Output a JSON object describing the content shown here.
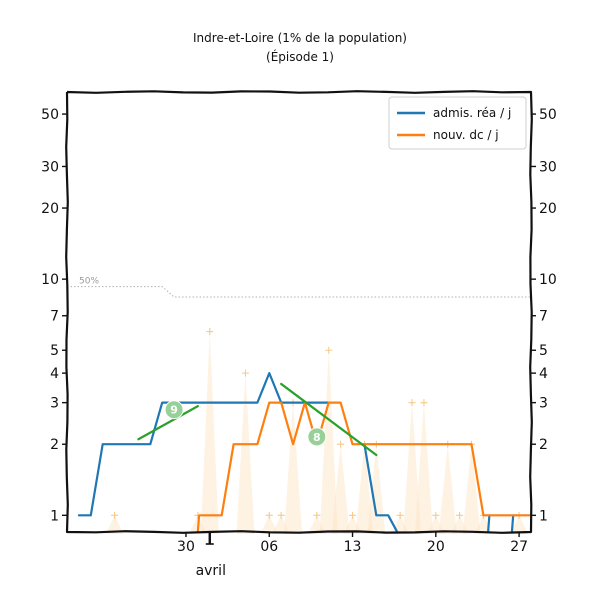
{
  "chart_data": {
    "type": "line",
    "title": "Indre-et-Loire (1% de la population)",
    "subtitle": "(Épisode 1)",
    "y_scale": "log",
    "ylim": [
      0.85,
      62
    ],
    "xlim": [
      "2020-03-20",
      "2020-04-28"
    ],
    "y_ticks": [
      {
        "value": 1,
        "label": "1"
      },
      {
        "value": 2,
        "label": "2"
      },
      {
        "value": 3,
        "label": "3"
      },
      {
        "value": 4,
        "label": "4"
      },
      {
        "value": 5,
        "label": "5"
      },
      {
        "value": 7,
        "label": "7"
      },
      {
        "value": 10,
        "label": "10"
      },
      {
        "value": 20,
        "label": "20"
      },
      {
        "value": 30,
        "label": "30"
      },
      {
        "value": 50,
        "label": "50"
      }
    ],
    "x_ticks": [
      {
        "date": "2020-03-30",
        "label": "30"
      },
      {
        "date": "2020-04-06",
        "label": "06"
      },
      {
        "date": "2020-04-13",
        "label": "13"
      },
      {
        "date": "2020-04-20",
        "label": "20"
      },
      {
        "date": "2020-04-27",
        "label": "27"
      }
    ],
    "month_marker": {
      "date": "2020-04-01",
      "label": "avril"
    },
    "legend": {
      "placement": "top-right"
    },
    "reference_line": {
      "label": "50%",
      "color": "#b0b0b0",
      "points": [
        {
          "x": "2020-03-20",
          "y": 9.3
        },
        {
          "x": "2020-03-27",
          "y": 9.3
        },
        {
          "x": "2020-03-28",
          "y": 9.3
        },
        {
          "x": "2020-03-29",
          "y": 8.4
        },
        {
          "x": "2020-04-28",
          "y": 8.4
        }
      ]
    },
    "series": [
      {
        "name": "admis. réa / j",
        "color": "#1f77b4",
        "segments": [
          [
            {
              "x": "2020-03-21",
              "y": 1
            },
            {
              "x": "2020-03-22",
              "y": 1
            },
            {
              "x": "2020-03-23",
              "y": 2
            },
            {
              "x": "2020-03-24",
              "y": 2
            },
            {
              "x": "2020-03-25",
              "y": 2
            },
            {
              "x": "2020-03-26",
              "y": 2
            },
            {
              "x": "2020-03-27",
              "y": 2
            },
            {
              "x": "2020-03-28",
              "y": 3
            },
            {
              "x": "2020-03-29",
              "y": 3
            },
            {
              "x": "2020-03-30",
              "y": 3
            },
            {
              "x": "2020-03-31",
              "y": 3
            },
            {
              "x": "2020-04-01",
              "y": 3
            },
            {
              "x": "2020-04-02",
              "y": 3
            },
            {
              "x": "2020-04-03",
              "y": 3
            },
            {
              "x": "2020-04-04",
              "y": 3
            },
            {
              "x": "2020-04-05",
              "y": 3
            },
            {
              "x": "2020-04-06",
              "y": 4
            },
            {
              "x": "2020-04-07",
              "y": 3
            },
            {
              "x": "2020-04-08",
              "y": 3
            },
            {
              "x": "2020-04-09",
              "y": 3
            },
            {
              "x": "2020-04-10",
              "y": 3
            },
            {
              "x": "2020-04-11",
              "y": 3
            }
          ],
          [
            {
              "x": "2020-04-14",
              "y": 2
            },
            {
              "x": "2020-04-15",
              "y": 1
            },
            {
              "x": "2020-04-16",
              "y": 1
            },
            {
              "x": "2020-04-16.7",
              "y": 0.86
            }
          ],
          [
            {
              "x": "2020-04-24.4",
              "y": 0.86
            },
            {
              "x": "2020-04-24.5",
              "y": 1
            }
          ],
          [
            {
              "x": "2020-04-26.4",
              "y": 0.86
            },
            {
              "x": "2020-04-26.5",
              "y": 1
            }
          ]
        ]
      },
      {
        "name": "nouv. dc / j",
        "color": "#ff7f0e",
        "segments": [
          [
            {
              "x": "2020-03-31",
              "y": 0.86
            },
            {
              "x": "2020-03-31.1",
              "y": 1
            },
            {
              "x": "2020-04-01",
              "y": 1
            },
            {
              "x": "2020-04-02",
              "y": 1
            },
            {
              "x": "2020-04-03",
              "y": 2
            },
            {
              "x": "2020-04-04",
              "y": 2
            },
            {
              "x": "2020-04-05",
              "y": 2
            },
            {
              "x": "2020-04-06",
              "y": 3
            },
            {
              "x": "2020-04-07",
              "y": 3
            },
            {
              "x": "2020-04-08",
              "y": 2
            },
            {
              "x": "2020-04-09",
              "y": 3
            },
            {
              "x": "2020-04-10",
              "y": 2
            },
            {
              "x": "2020-04-11",
              "y": 3
            },
            {
              "x": "2020-04-12",
              "y": 3
            },
            {
              "x": "2020-04-13",
              "y": 2
            },
            {
              "x": "2020-04-14",
              "y": 2
            },
            {
              "x": "2020-04-15",
              "y": 2
            },
            {
              "x": "2020-04-16",
              "y": 2
            },
            {
              "x": "2020-04-17",
              "y": 2
            },
            {
              "x": "2020-04-18",
              "y": 2
            },
            {
              "x": "2020-04-19",
              "y": 2
            },
            {
              "x": "2020-04-20",
              "y": 2
            },
            {
              "x": "2020-04-21",
              "y": 2
            },
            {
              "x": "2020-04-22",
              "y": 2
            },
            {
              "x": "2020-04-23",
              "y": 2
            },
            {
              "x": "2020-04-24",
              "y": 1
            },
            {
              "x": "2020-04-25",
              "y": 1
            },
            {
              "x": "2020-04-26",
              "y": 1
            },
            {
              "x": "2020-04-27",
              "y": 1
            },
            {
              "x": "2020-04-28",
              "y": 1
            }
          ]
        ]
      }
    ],
    "daily_deaths": {
      "color": "#fde3c0",
      "values": [
        {
          "x": "2020-03-24",
          "y": 1
        },
        {
          "x": "2020-03-25",
          "y": 0
        },
        {
          "x": "2020-03-26",
          "y": 0
        },
        {
          "x": "2020-03-27",
          "y": 0
        },
        {
          "x": "2020-03-28",
          "y": 0
        },
        {
          "x": "2020-03-29",
          "y": 0
        },
        {
          "x": "2020-03-30",
          "y": 0
        },
        {
          "x": "2020-03-31",
          "y": 1
        },
        {
          "x": "2020-04-01",
          "y": 6
        },
        {
          "x": "2020-04-02",
          "y": 0
        },
        {
          "x": "2020-04-03",
          "y": 0
        },
        {
          "x": "2020-04-04",
          "y": 4
        },
        {
          "x": "2020-04-05",
          "y": 0
        },
        {
          "x": "2020-04-06",
          "y": 1
        },
        {
          "x": "2020-04-07",
          "y": 1
        },
        {
          "x": "2020-04-08",
          "y": 3
        },
        {
          "x": "2020-04-09",
          "y": 0
        },
        {
          "x": "2020-04-10",
          "y": 1
        },
        {
          "x": "2020-04-11",
          "y": 5
        },
        {
          "x": "2020-04-12",
          "y": 2
        },
        {
          "x": "2020-04-13",
          "y": 1
        },
        {
          "x": "2020-04-14",
          "y": 2
        },
        {
          "x": "2020-04-15",
          "y": 2
        },
        {
          "x": "2020-04-16",
          "y": 0
        },
        {
          "x": "2020-04-17",
          "y": 1
        },
        {
          "x": "2020-04-18",
          "y": 3
        },
        {
          "x": "2020-04-19",
          "y": 3
        },
        {
          "x": "2020-04-20",
          "y": 1
        },
        {
          "x": "2020-04-21",
          "y": 2
        },
        {
          "x": "2020-04-22",
          "y": 1
        },
        {
          "x": "2020-04-23",
          "y": 2
        },
        {
          "x": "2020-04-24",
          "y": 1
        },
        {
          "x": "2020-04-25",
          "y": 0
        },
        {
          "x": "2020-04-26",
          "y": 0
        },
        {
          "x": "2020-04-27",
          "y": 1
        }
      ]
    },
    "trend_lines": [
      {
        "label": "9",
        "color": "#2ca02c",
        "badge_color": "#98d198",
        "points": [
          {
            "x": "2020-03-26",
            "y": 2.1
          },
          {
            "x": "2020-03-31",
            "y": 2.9
          }
        ],
        "badge": {
          "x": "2020-03-29",
          "y": 2.8
        }
      },
      {
        "label": "8",
        "color": "#2ca02c",
        "badge_color": "#98d198",
        "points": [
          {
            "x": "2020-04-07",
            "y": 3.6
          },
          {
            "x": "2020-04-15",
            "y": 1.8
          }
        ],
        "badge": {
          "x": "2020-04-10",
          "y": 2.15
        }
      }
    ]
  }
}
